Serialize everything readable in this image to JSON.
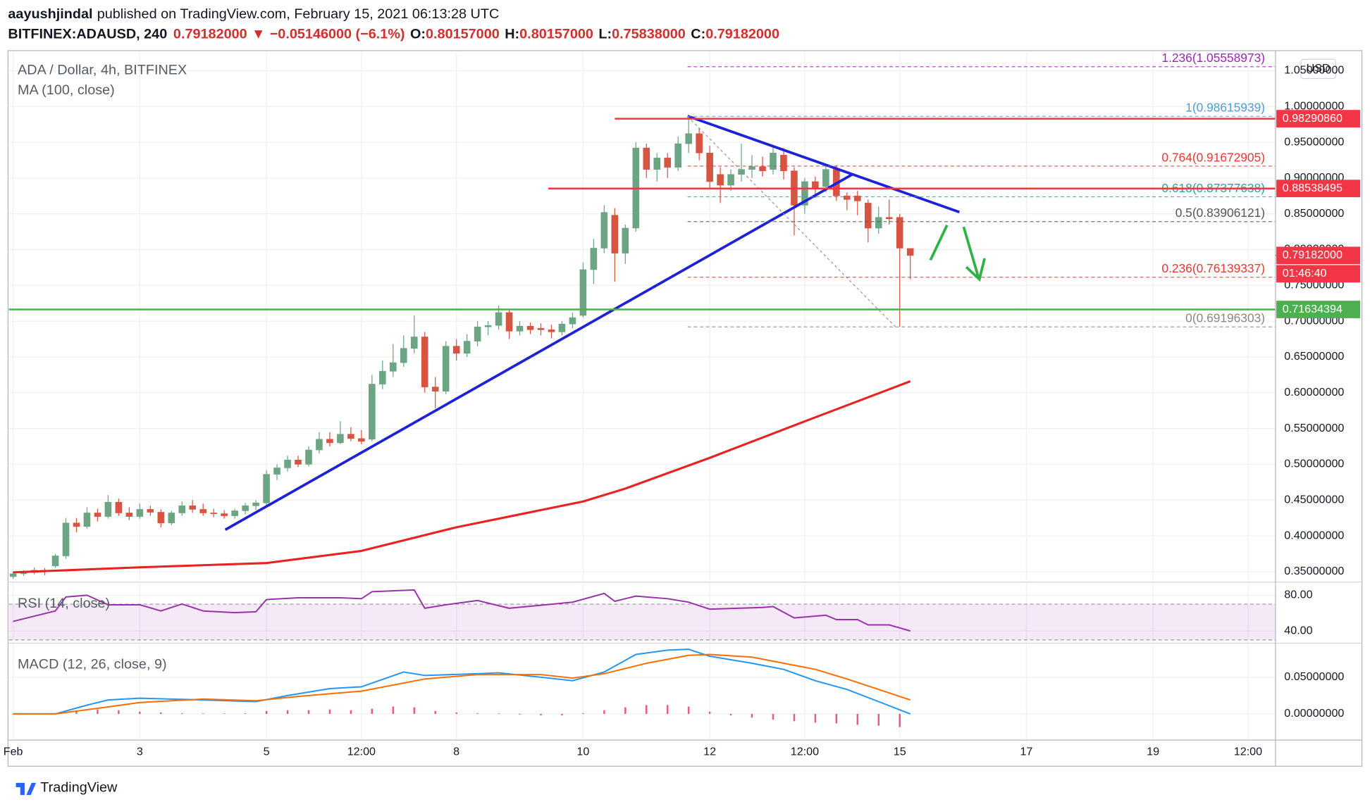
{
  "header": {
    "author": "aayushjindal",
    "published": "published on TradingView.com, February 15, 2021 06:13:28 UTC",
    "symbol": "BITFINEX:ADAUSD, 240",
    "last": "0.79182000",
    "arrow": "▼",
    "change": "−0.05146000 (−6.1%)",
    "ohlc": [
      {
        "label": "O:",
        "value": "0.80157000"
      },
      {
        "label": "H:",
        "value": "0.80157000"
      },
      {
        "label": "L:",
        "value": "0.75838000"
      },
      {
        "label": "C:",
        "value": "0.79182000"
      }
    ]
  },
  "currency": "USD",
  "footer": "TradingView",
  "chart_data": [
    {
      "type": "candlestick",
      "title": "ADA / Dollar, 4h, BITFINEX",
      "up_color": "#6ba583",
      "down_color": "#d75442",
      "open": [
        0.343,
        0.347,
        0.349,
        0.352,
        0.358,
        0.372,
        0.418,
        0.413,
        0.432,
        0.427,
        0.447,
        0.432,
        0.427,
        0.437,
        0.433,
        0.418,
        0.432,
        0.442,
        0.437,
        0.432,
        0.431,
        0.428,
        0.435,
        0.442,
        0.446,
        0.486,
        0.495,
        0.506,
        0.5,
        0.52,
        0.535,
        0.53,
        0.542,
        0.536,
        0.535,
        0.612,
        0.63,
        0.642,
        0.662,
        0.678,
        0.608,
        0.602,
        0.665,
        0.655,
        0.672,
        0.692,
        0.694,
        0.712,
        0.686,
        0.693,
        0.69,
        0.688,
        0.685,
        0.696,
        0.708,
        0.772,
        0.802,
        0.848,
        0.795,
        0.83,
        0.942,
        0.912,
        0.928,
        0.915,
        0.948,
        0.962,
        0.935,
        0.905,
        0.89,
        0.905,
        0.912,
        0.916,
        0.912,
        0.932,
        0.91,
        0.862,
        0.895,
        0.888,
        0.912,
        0.875,
        0.875,
        0.865,
        0.83,
        0.845,
        0.845,
        0.80157
      ],
      "high": [
        0.35,
        0.352,
        0.356,
        0.355,
        0.375,
        0.425,
        0.425,
        0.44,
        0.438,
        0.457,
        0.452,
        0.44,
        0.445,
        0.442,
        0.437,
        0.435,
        0.448,
        0.45,
        0.445,
        0.438,
        0.436,
        0.438,
        0.446,
        0.45,
        0.492,
        0.5,
        0.512,
        0.512,
        0.525,
        0.545,
        0.545,
        0.56,
        0.552,
        0.548,
        0.625,
        0.645,
        0.668,
        0.68,
        0.708,
        0.685,
        0.622,
        0.672,
        0.675,
        0.682,
        0.7,
        0.7,
        0.722,
        0.716,
        0.7,
        0.698,
        0.697,
        0.695,
        0.7,
        0.712,
        0.782,
        0.815,
        0.862,
        0.858,
        0.835,
        0.95,
        0.948,
        0.935,
        0.935,
        0.958,
        0.985,
        0.97,
        0.945,
        0.915,
        0.912,
        0.948,
        0.932,
        0.93,
        0.945,
        0.942,
        0.915,
        0.9,
        0.902,
        0.92,
        0.918,
        0.88,
        0.882,
        0.87,
        0.86,
        0.87,
        0.85,
        0.80157
      ],
      "low": [
        0.34,
        0.344,
        0.346,
        0.345,
        0.355,
        0.368,
        0.405,
        0.41,
        0.42,
        0.424,
        0.428,
        0.422,
        0.424,
        0.428,
        0.412,
        0.415,
        0.428,
        0.432,
        0.428,
        0.426,
        0.424,
        0.424,
        0.43,
        0.436,
        0.44,
        0.478,
        0.49,
        0.496,
        0.497,
        0.515,
        0.525,
        0.528,
        0.532,
        0.528,
        0.532,
        0.605,
        0.622,
        0.636,
        0.655,
        0.6,
        0.578,
        0.598,
        0.645,
        0.65,
        0.665,
        0.68,
        0.688,
        0.675,
        0.68,
        0.682,
        0.68,
        0.676,
        0.68,
        0.69,
        0.705,
        0.752,
        0.795,
        0.755,
        0.78,
        0.825,
        0.9,
        0.895,
        0.9,
        0.91,
        0.935,
        0.925,
        0.885,
        0.865,
        0.882,
        0.895,
        0.9,
        0.902,
        0.905,
        0.898,
        0.82,
        0.85,
        0.872,
        0.88,
        0.868,
        0.855,
        0.848,
        0.81,
        0.822,
        0.835,
        0.692,
        0.75838
      ],
      "close": [
        0.347,
        0.349,
        0.352,
        0.35,
        0.372,
        0.418,
        0.413,
        0.432,
        0.427,
        0.447,
        0.432,
        0.427,
        0.437,
        0.433,
        0.418,
        0.432,
        0.442,
        0.437,
        0.432,
        0.431,
        0.428,
        0.435,
        0.442,
        0.446,
        0.486,
        0.495,
        0.506,
        0.5,
        0.52,
        0.535,
        0.53,
        0.542,
        0.536,
        0.532,
        0.612,
        0.63,
        0.642,
        0.662,
        0.678,
        0.608,
        0.602,
        0.665,
        0.655,
        0.672,
        0.692,
        0.694,
        0.712,
        0.686,
        0.693,
        0.688,
        0.688,
        0.685,
        0.696,
        0.705,
        0.772,
        0.802,
        0.852,
        0.795,
        0.83,
        0.942,
        0.912,
        0.928,
        0.915,
        0.948,
        0.962,
        0.935,
        0.895,
        0.89,
        0.905,
        0.912,
        0.916,
        0.91,
        0.935,
        0.91,
        0.862,
        0.895,
        0.885,
        0.912,
        0.875,
        0.87,
        0.868,
        0.83,
        0.845,
        0.843,
        0.802,
        0.79182
      ],
      "series": [
        {
          "name": "MA (100, close)",
          "color": "#e8231f",
          "x": [
            0,
            12,
            24,
            33,
            42,
            54,
            58,
            66,
            75,
            85
          ],
          "values": [
            0.349,
            0.356,
            0.362,
            0.379,
            0.412,
            0.448,
            0.466,
            0.509,
            0.56,
            0.616
          ]
        }
      ],
      "trendlines": [
        {
          "color": "#1e22d6",
          "x": [
            20.1,
            79.5
          ],
          "values": [
            0.4085,
            0.905
          ]
        },
        {
          "color": "#1e22d6",
          "x": [
            63.9,
            89.65
          ],
          "values": [
            0.9866,
            0.8524
          ]
        }
      ],
      "hlines": [
        {
          "value": 0.9829086,
          "label": "0.98290860",
          "color": "#f23645",
          "x_start": 57
        },
        {
          "value": 0.88538495,
          "label": "0.88538495",
          "color": "#f23645",
          "x_start": 50.7
        },
        {
          "value": 0.71634394,
          "label": "0.71634394",
          "color": "#4caf50"
        }
      ],
      "last_price": {
        "value": 0.79182,
        "label": "0.79182000",
        "countdown": "01:46:40",
        "color": "#f23645"
      },
      "fib": {
        "anchor_x": [
          63.9,
          83.6
        ],
        "levels": [
          {
            "label": "1.236(1.05558973)",
            "value": 1.05558973,
            "color": "#9c27b0"
          },
          {
            "label": "1(0.98615939)",
            "value": 0.98615939,
            "color": "#4a9fd8"
          },
          {
            "label": "0.764(0.91672905)",
            "value": 0.91672905,
            "color": "#e53935"
          },
          {
            "label": "0.618(0.87377638)",
            "value": 0.87377638,
            "color": "#26a69a"
          },
          {
            "label": "0.5(0.83906121)",
            "value": 0.83906121,
            "color": "#555555"
          },
          {
            "label": "0.236(0.76139337)",
            "value": 0.76139337,
            "color": "#e53935"
          },
          {
            "label": "0(0.69196303)",
            "value": 0.69196303,
            "color": "#888888"
          }
        ]
      },
      "xlim": [
        -0.4,
        119.6
      ],
      "ylim": [
        0.3378,
        1.0756
      ],
      "yticks": [
        {
          "value": 0.35,
          "label": "0.35000000"
        },
        {
          "value": 0.4,
          "label": "0.40000000"
        },
        {
          "value": 0.45,
          "label": "0.45000000"
        },
        {
          "value": 0.5,
          "label": "0.50000000"
        },
        {
          "value": 0.55,
          "label": "0.55000000"
        },
        {
          "value": 0.6,
          "label": "0.60000000"
        },
        {
          "value": 0.65,
          "label": "0.65000000"
        },
        {
          "value": 0.7,
          "label": "0.70000000"
        },
        {
          "value": 0.75,
          "label": "0.75000000"
        },
        {
          "value": 0.8,
          "label": "0.80000000"
        },
        {
          "value": 0.85,
          "label": "0.85000000"
        },
        {
          "value": 0.9,
          "label": "0.90000000"
        },
        {
          "value": 0.95,
          "label": "0.95000000"
        },
        {
          "value": 1.0,
          "label": "1.00000000"
        },
        {
          "value": 1.05,
          "label": "1.05000000"
        }
      ],
      "xticks": [
        {
          "value": 0,
          "label": "Feb"
        },
        {
          "value": 12,
          "label": "3"
        },
        {
          "value": 24,
          "label": "5"
        },
        {
          "value": 33,
          "label": "12:00"
        },
        {
          "value": 42,
          "label": "8"
        },
        {
          "value": 54,
          "label": "10"
        },
        {
          "value": 66,
          "label": "12"
        },
        {
          "value": 75,
          "label": "12:00"
        },
        {
          "value": 84,
          "label": "15"
        },
        {
          "value": 96,
          "label": "17"
        },
        {
          "value": 108,
          "label": "19"
        },
        {
          "value": 117,
          "label": "12:00"
        }
      ],
      "grid": true
    },
    {
      "type": "line",
      "title": "RSI (14, close)",
      "band": [
        30,
        70
      ],
      "band_color": "#9c27b0",
      "series": [
        {
          "name": "RSI",
          "color": "#9932a8",
          "x": [
            0,
            4,
            5,
            7,
            9,
            12,
            14,
            16,
            18,
            21,
            23,
            24,
            27,
            31,
            33,
            34,
            38,
            39,
            41,
            44,
            47,
            53,
            56,
            57,
            59,
            62,
            64,
            66,
            71,
            72,
            74,
            77,
            78,
            80,
            81,
            83,
            85
          ],
          "values": [
            50.7,
            62.4,
            78.0,
            80,
            69.3,
            69.3,
            62.4,
            70.2,
            62.4,
            60.5,
            61.5,
            75.1,
            77.1,
            77.1,
            76.1,
            83.9,
            85.9,
            65.4,
            69.3,
            74.1,
            65.4,
            72.2,
            82.0,
            73.2,
            79.0,
            76.1,
            72.2,
            64.4,
            66.3,
            67.3,
            54.6,
            57.6,
            52.7,
            52.7,
            46.8,
            46.8,
            40.0
          ]
        }
      ],
      "xlim": [
        -0.4,
        119.6
      ],
      "ylim": [
        27.3,
        93.7
      ],
      "yticks": [
        {
          "value": 80,
          "label": "80.00"
        },
        {
          "value": 40,
          "label": "40.00"
        }
      ]
    },
    {
      "type": "line",
      "title": "MACD (12, 26, close, 9)",
      "series": [
        {
          "kind": "bar",
          "color": "#e91e63",
          "x": [
            0,
            2,
            4,
            6,
            8,
            10,
            12,
            14,
            16,
            18,
            20,
            22,
            24,
            26,
            28,
            30,
            32,
            34,
            36,
            38,
            40,
            42,
            44,
            46,
            48,
            50,
            52,
            54,
            56,
            58,
            60,
            62,
            64,
            66,
            68,
            70,
            72,
            74,
            76,
            78,
            80,
            82,
            84
          ],
          "values": [
            0,
            0,
            0.001,
            0.004,
            0.006,
            0.005,
            0.003,
            0.002,
            0.001,
            0.0005,
            0.0005,
            0.001,
            0.004,
            0.005,
            0.005,
            0.006,
            0.005,
            0.007,
            0.01,
            0.009,
            0.004,
            0.002,
            0.001,
            0.0005,
            -0.001,
            -0.002,
            -0.002,
            0.001,
            0.005,
            0.009,
            0.012,
            0.012,
            0.01,
            0.003,
            -0.002,
            -0.005,
            -0.008,
            -0.01,
            -0.012,
            -0.013,
            -0.015,
            -0.016,
            -0.018
          ]
        },
        {
          "kind": "line",
          "color": "#2196f3",
          "x": [
            0,
            4,
            7,
            9,
            12,
            18,
            23,
            26,
            30,
            33,
            37,
            39,
            44,
            46,
            50,
            53,
            56,
            59,
            62,
            64,
            66,
            70,
            73,
            76,
            79,
            82,
            85
          ],
          "values": [
            0,
            0,
            0.0119,
            0.019,
            0.0214,
            0.019,
            0.0167,
            0.025,
            0.0345,
            0.0369,
            0.0571,
            0.0524,
            0.0548,
            0.056,
            0.05,
            0.0452,
            0.0571,
            0.081,
            0.0869,
            0.0881,
            0.0786,
            0.069,
            0.0607,
            0.0452,
            0.0333,
            0.0167,
            0
          ]
        },
        {
          "kind": "line",
          "color": "#ff6d00",
          "x": [
            0,
            4,
            9,
            12,
            18,
            23,
            27,
            33,
            39,
            44,
            50,
            53,
            56,
            60,
            64,
            66,
            70,
            73,
            76,
            79,
            82,
            85
          ],
          "values": [
            0,
            0,
            0.0095,
            0.0155,
            0.0202,
            0.0179,
            0.0238,
            0.031,
            0.0476,
            0.0536,
            0.0536,
            0.0488,
            0.0548,
            0.069,
            0.0798,
            0.081,
            0.0774,
            0.069,
            0.0607,
            0.0476,
            0.0333,
            0.019
          ]
        }
      ],
      "xlim": [
        -0.4,
        119.6
      ],
      "ylim": [
        -0.0357,
        0.0952
      ],
      "yticks": [
        {
          "value": 0.05,
          "label": "0.05000000"
        },
        {
          "value": 0,
          "label": "0.00000000"
        }
      ]
    }
  ]
}
